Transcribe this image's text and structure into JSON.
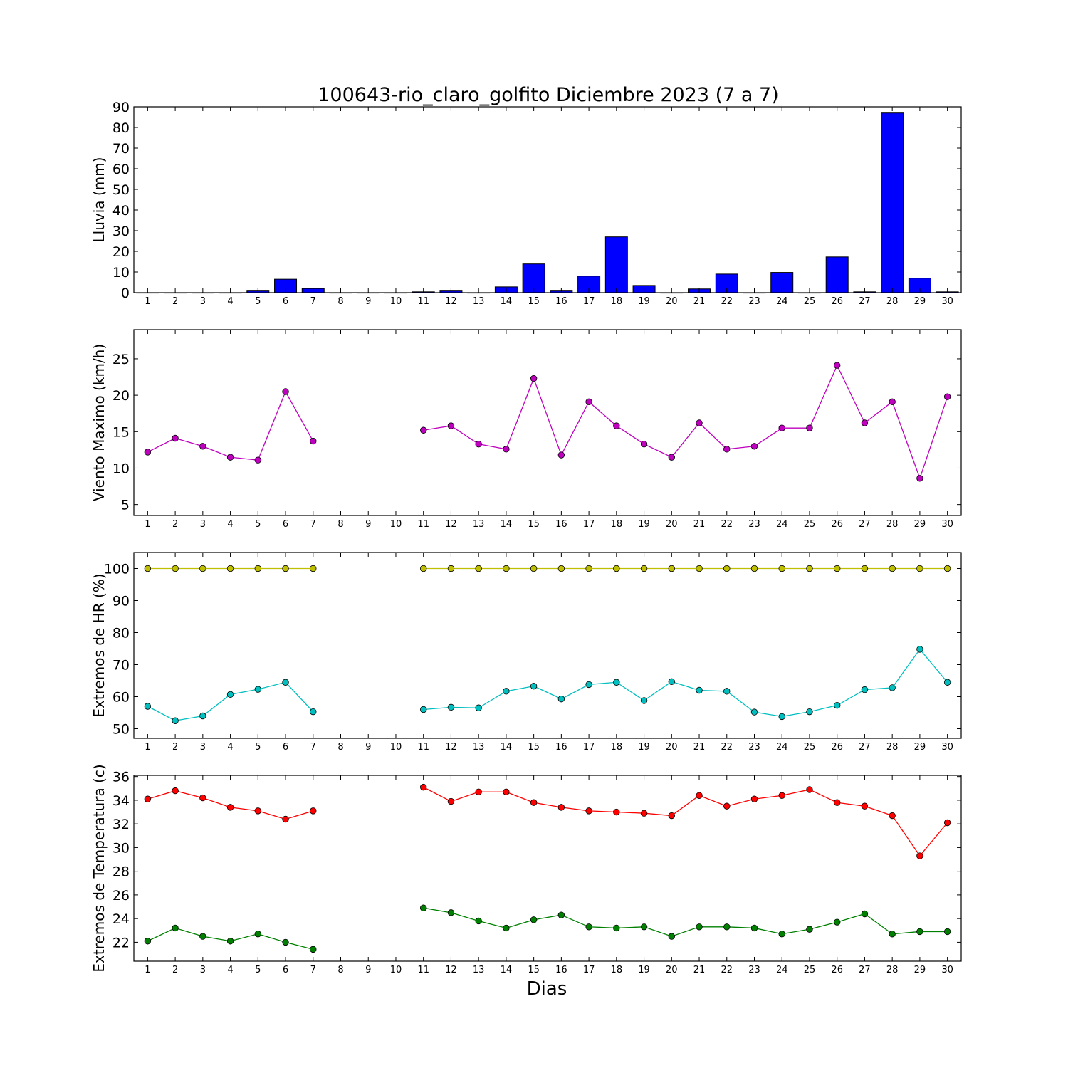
{
  "chart_data": {
    "title": "100643-rio_claro_golfito Diciembre 2023  (7 a 7)",
    "xlabel": "Dias",
    "x_categories": [
      1,
      2,
      3,
      4,
      5,
      6,
      7,
      8,
      9,
      10,
      11,
      12,
      13,
      14,
      15,
      16,
      17,
      18,
      19,
      20,
      21,
      22,
      23,
      24,
      25,
      26,
      27,
      28,
      29,
      30
    ],
    "panels": [
      {
        "type": "bar",
        "ylabel": "Lluvia (mm)",
        "ylim": [
          0,
          90
        ],
        "yticks": [
          0,
          10,
          20,
          30,
          40,
          50,
          60,
          70,
          80,
          90
        ],
        "series": [
          {
            "color": "#0000ff",
            "values": [
              0,
              0,
              0,
              0,
              0.8,
              6.5,
              2,
              0,
              0,
              0,
              0.4,
              0.8,
              0,
              2.8,
              13.9,
              0.8,
              8,
              27,
              3.5,
              0,
              1.8,
              9,
              0,
              9.8,
              0,
              17.3,
              0.4,
              87,
              7,
              0.4
            ]
          }
        ]
      },
      {
        "type": "line",
        "ylabel": "Viento Maximo (km/h)",
        "ylim": [
          3.5,
          29
        ],
        "yticks": [
          5,
          10,
          15,
          20,
          25
        ],
        "series": [
          {
            "color": "#bf00bf",
            "values": [
              12.2,
              14.1,
              13,
              11.5,
              11.1,
              20.5,
              13.7,
              null,
              null,
              null,
              15.2,
              15.8,
              13.3,
              12.6,
              22.3,
              11.8,
              19.1,
              15.8,
              13.3,
              11.5,
              16.2,
              12.6,
              13,
              15.5,
              15.5,
              24.1,
              16.2,
              19.1,
              8.6,
              19.8
            ]
          }
        ]
      },
      {
        "type": "line",
        "ylabel": "Extremos de HR (%)",
        "ylim": [
          47,
          105
        ],
        "yticks": [
          50,
          60,
          70,
          80,
          90,
          100
        ],
        "series": [
          {
            "color": "#bfbf00",
            "values": [
              100,
              100,
              100,
              100,
              100,
              100,
              100,
              null,
              null,
              null,
              100,
              100,
              100,
              100,
              100,
              100,
              100,
              100,
              100,
              100,
              100,
              100,
              100,
              100,
              100,
              100,
              100,
              100,
              100,
              100
            ]
          },
          {
            "color": "#00bfbf",
            "values": [
              57,
              52.5,
              54,
              60.7,
              62.3,
              64.5,
              55.3,
              null,
              null,
              null,
              56,
              56.7,
              56.5,
              61.7,
              63.3,
              59.3,
              63.8,
              64.5,
              58.8,
              64.7,
              62,
              61.7,
              55.2,
              53.8,
              55.3,
              57.3,
              62.2,
              62.8,
              74.8,
              64.5
            ]
          }
        ]
      },
      {
        "type": "line",
        "ylabel": "Extremos de Temperatura (c)",
        "ylim": [
          20.4,
          36.1
        ],
        "yticks": [
          22,
          24,
          26,
          28,
          30,
          32,
          34,
          36
        ],
        "series": [
          {
            "color": "#ff0000",
            "values": [
              34.1,
              34.8,
              34.2,
              33.4,
              33.1,
              32.4,
              33.1,
              null,
              null,
              null,
              35.1,
              33.9,
              34.7,
              34.7,
              33.8,
              33.4,
              33.1,
              33,
              32.9,
              32.7,
              34.4,
              33.5,
              34.1,
              34.4,
              34.9,
              33.8,
              33.5,
              32.7,
              29.3,
              32.1
            ]
          },
          {
            "color": "#008000",
            "values": [
              22.1,
              23.2,
              22.5,
              22.1,
              22.7,
              22,
              21.4,
              null,
              null,
              null,
              24.9,
              24.5,
              23.8,
              23.2,
              23.9,
              24.3,
              23.3,
              23.2,
              23.3,
              22.5,
              23.3,
              23.3,
              23.2,
              22.7,
              23.1,
              23.7,
              24.4,
              22.7,
              22.9,
              22.9
            ]
          }
        ]
      }
    ]
  }
}
